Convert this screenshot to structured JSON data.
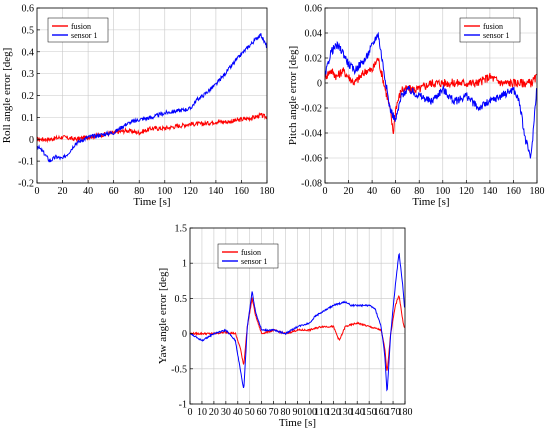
{
  "chart_data": [
    {
      "type": "line",
      "xlabel": "Time [s]",
      "ylabel": "Roll angle error [deg]",
      "xlim": [
        0,
        180
      ],
      "ylim": [
        -0.2,
        0.6
      ],
      "xticks": [
        0,
        20,
        40,
        60,
        80,
        100,
        120,
        140,
        160,
        180
      ],
      "yticks": [
        -0.2,
        -0.1,
        0,
        0.1,
        0.2,
        0.3,
        0.4,
        0.5,
        0.6
      ],
      "grid": true,
      "legend": "top-left",
      "series": [
        {
          "name": "fusion",
          "color": "#ff0000",
          "x": [
            0,
            10,
            20,
            30,
            40,
            50,
            60,
            70,
            80,
            90,
            100,
            110,
            120,
            130,
            140,
            150,
            160,
            170,
            175,
            180
          ],
          "y": [
            0,
            0,
            0.01,
            0,
            0.01,
            0.02,
            0.03,
            0.04,
            0.03,
            0.05,
            0.05,
            0.06,
            0.07,
            0.07,
            0.08,
            0.08,
            0.09,
            0.1,
            0.11,
            0.1
          ]
        },
        {
          "name": "sensor 1",
          "color": "#0000ff",
          "x": [
            0,
            5,
            10,
            15,
            20,
            25,
            30,
            40,
            50,
            60,
            70,
            80,
            90,
            100,
            110,
            120,
            125,
            130,
            140,
            150,
            160,
            170,
            175,
            180
          ],
          "y": [
            -0.03,
            -0.06,
            -0.1,
            -0.08,
            -0.09,
            -0.06,
            -0.02,
            0.01,
            0.02,
            0.03,
            0.07,
            0.09,
            0.1,
            0.12,
            0.13,
            0.14,
            0.18,
            0.2,
            0.25,
            0.32,
            0.39,
            0.45,
            0.48,
            0.42
          ]
        }
      ]
    },
    {
      "type": "line",
      "xlabel": "Time [s]",
      "ylabel": "Pitch angle error [deg]",
      "xlim": [
        0,
        180
      ],
      "ylim": [
        -0.08,
        0.06
      ],
      "xticks": [
        0,
        20,
        40,
        60,
        80,
        100,
        120,
        140,
        160,
        180
      ],
      "yticks": [
        -0.08,
        -0.06,
        -0.04,
        -0.02,
        0,
        0.02,
        0.04,
        0.06
      ],
      "grid": true,
      "legend": "top-right",
      "series": [
        {
          "name": "fusion",
          "color": "#ff0000",
          "x": [
            0,
            5,
            10,
            15,
            20,
            25,
            30,
            35,
            40,
            45,
            50,
            55,
            58,
            60,
            65,
            70,
            80,
            90,
            100,
            110,
            120,
            130,
            140,
            150,
            160,
            170,
            175,
            180
          ],
          "y": [
            0.005,
            0.01,
            0.005,
            0.01,
            0.005,
            0.0,
            0.005,
            0.01,
            0.01,
            0.02,
            0.0,
            -0.02,
            -0.04,
            -0.02,
            -0.005,
            -0.005,
            -0.005,
            0.0,
            0.0,
            0.0,
            0.0,
            0.0,
            0.005,
            0.0,
            0.0,
            0.0,
            0.0,
            0.005
          ]
        },
        {
          "name": "sensor 1",
          "color": "#0000ff",
          "x": [
            0,
            5,
            10,
            15,
            20,
            25,
            30,
            35,
            40,
            45,
            50,
            55,
            60,
            65,
            70,
            80,
            90,
            100,
            110,
            120,
            130,
            140,
            150,
            160,
            165,
            170,
            175,
            180
          ],
          "y": [
            0.005,
            0.025,
            0.03,
            0.025,
            0.015,
            0.01,
            0.015,
            0.02,
            0.03,
            0.04,
            0.01,
            -0.02,
            -0.03,
            -0.01,
            -0.005,
            -0.01,
            -0.015,
            -0.005,
            -0.015,
            -0.01,
            -0.02,
            -0.015,
            -0.01,
            -0.005,
            -0.015,
            -0.045,
            -0.06,
            0.0
          ]
        }
      ]
    },
    {
      "type": "line",
      "xlabel": "Time [s]",
      "ylabel": "Yaw angle error [deg]",
      "xlim": [
        0,
        180
      ],
      "ylim": [
        -1,
        1.5
      ],
      "xticks": [
        0,
        10,
        20,
        30,
        40,
        50,
        60,
        70,
        80,
        90,
        100,
        110,
        120,
        130,
        140,
        150,
        160,
        170,
        180
      ],
      "yticks": [
        -1,
        -0.5,
        0,
        0.5,
        1,
        1.5
      ],
      "grid": true,
      "legend": "top-left",
      "series": [
        {
          "name": "fusion",
          "color": "#ff0000",
          "x": [
            0,
            10,
            20,
            30,
            38,
            42,
            45,
            48,
            52,
            55,
            60,
            70,
            80,
            90,
            100,
            110,
            120,
            125,
            130,
            140,
            150,
            160,
            163,
            165,
            168,
            172,
            175,
            178,
            180
          ],
          "y": [
            0,
            0,
            0,
            0.02,
            0,
            -0.2,
            -0.45,
            0.1,
            0.5,
            0.25,
            0,
            0.05,
            0,
            0.05,
            0.05,
            0.1,
            0.1,
            -0.1,
            0.1,
            0.15,
            0.1,
            0.05,
            -0.2,
            -0.55,
            0,
            0.4,
            0.55,
            0.2,
            0.05
          ]
        },
        {
          "name": "sensor 1",
          "color": "#0000ff",
          "x": [
            0,
            5,
            10,
            20,
            30,
            38,
            42,
            45,
            48,
            52,
            55,
            60,
            70,
            80,
            90,
            100,
            105,
            110,
            120,
            130,
            135,
            140,
            150,
            155,
            160,
            163,
            165,
            168,
            172,
            175,
            178,
            180
          ],
          "y": [
            0,
            -0.05,
            -0.1,
            0,
            0.05,
            -0.1,
            -0.5,
            -0.8,
            0.1,
            0.6,
            0.3,
            0.05,
            0.05,
            0,
            0.1,
            0.15,
            0.25,
            0.3,
            0.4,
            0.45,
            0.4,
            0.4,
            0.4,
            0.35,
            0.1,
            -0.3,
            -0.85,
            0.0,
            0.7,
            1.15,
            0.7,
            0.3
          ]
        }
      ]
    }
  ]
}
